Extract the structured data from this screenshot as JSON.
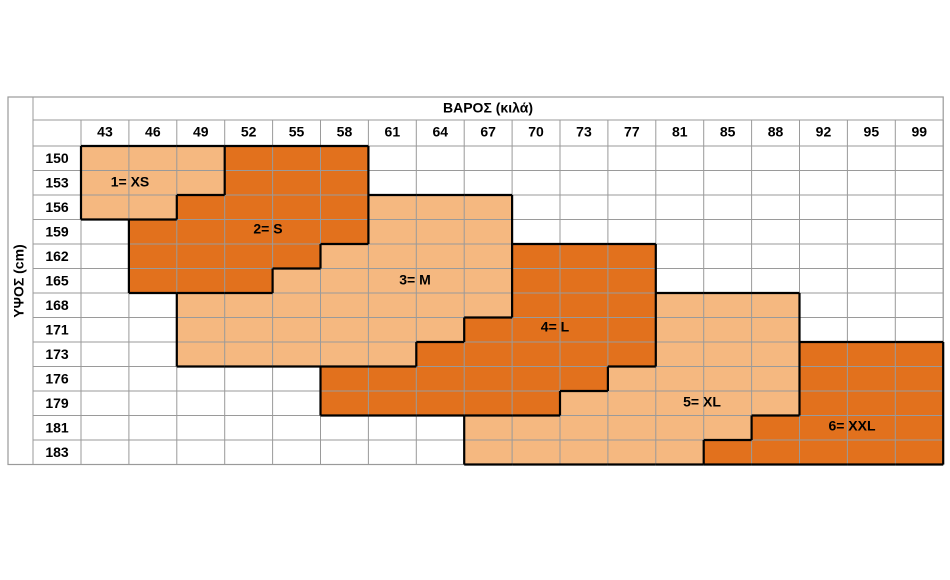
{
  "header": {
    "title": "ΒΑΡΟΣ (κιλά)",
    "side_label": "ΥΨΟΣ (cm)"
  },
  "table": {
    "columns": [
      43,
      46,
      49,
      52,
      55,
      58,
      61,
      64,
      67,
      70,
      73,
      77,
      81,
      85,
      88,
      92,
      95,
      99
    ],
    "rows": [
      {
        "height": 150,
        "cells": [
          1,
          1,
          1,
          2,
          2,
          2,
          null,
          null,
          null,
          null,
          null,
          null,
          null,
          null,
          null,
          null,
          null,
          null
        ]
      },
      {
        "height": 153,
        "cells": [
          1,
          1,
          1,
          2,
          2,
          2,
          null,
          null,
          null,
          null,
          null,
          null,
          null,
          null,
          null,
          null,
          null,
          null
        ]
      },
      {
        "height": 156,
        "cells": [
          1,
          1,
          2,
          2,
          2,
          2,
          3,
          3,
          3,
          null,
          null,
          null,
          null,
          null,
          null,
          null,
          null,
          null
        ]
      },
      {
        "height": 159,
        "cells": [
          null,
          2,
          2,
          2,
          2,
          2,
          3,
          3,
          3,
          null,
          null,
          null,
          null,
          null,
          null,
          null,
          null,
          null
        ]
      },
      {
        "height": 162,
        "cells": [
          null,
          2,
          2,
          2,
          2,
          3,
          3,
          3,
          3,
          4,
          4,
          4,
          null,
          null,
          null,
          null,
          null,
          null
        ]
      },
      {
        "height": 165,
        "cells": [
          null,
          2,
          2,
          2,
          3,
          3,
          3,
          3,
          3,
          4,
          4,
          4,
          null,
          null,
          null,
          null,
          null,
          null
        ]
      },
      {
        "height": 168,
        "cells": [
          null,
          null,
          3,
          3,
          3,
          3,
          3,
          3,
          3,
          4,
          4,
          4,
          5,
          5,
          5,
          null,
          null,
          null
        ]
      },
      {
        "height": 171,
        "cells": [
          null,
          null,
          3,
          3,
          3,
          3,
          3,
          3,
          4,
          4,
          4,
          4,
          5,
          5,
          5,
          null,
          null,
          null
        ]
      },
      {
        "height": 173,
        "cells": [
          null,
          null,
          3,
          3,
          3,
          3,
          3,
          4,
          4,
          4,
          4,
          4,
          5,
          5,
          5,
          6,
          6,
          6
        ]
      },
      {
        "height": 176,
        "cells": [
          null,
          null,
          null,
          null,
          null,
          4,
          4,
          4,
          4,
          4,
          4,
          5,
          5,
          5,
          5,
          6,
          6,
          6
        ]
      },
      {
        "height": 179,
        "cells": [
          null,
          null,
          null,
          null,
          null,
          4,
          4,
          4,
          4,
          4,
          5,
          5,
          5,
          5,
          5,
          6,
          6,
          6
        ]
      },
      {
        "height": 181,
        "cells": [
          null,
          null,
          null,
          null,
          null,
          null,
          null,
          null,
          5,
          5,
          5,
          5,
          5,
          5,
          6,
          6,
          6,
          6
        ]
      },
      {
        "height": 183,
        "cells": [
          null,
          null,
          null,
          null,
          null,
          null,
          null,
          null,
          5,
          5,
          5,
          5,
          5,
          6,
          6,
          6,
          6,
          6
        ]
      }
    ]
  },
  "sizes": [
    {
      "label": "1= XS",
      "color": "#f5b880"
    },
    {
      "label": "2= S",
      "color": "#e2711d"
    },
    {
      "label": "3= M",
      "color": "#f5b880"
    },
    {
      "label": "4= L",
      "color": "#e2711d"
    },
    {
      "label": "5= XL",
      "color": "#f5b880"
    },
    {
      "label": "6= XXL",
      "color": "#e2711d"
    }
  ]
}
